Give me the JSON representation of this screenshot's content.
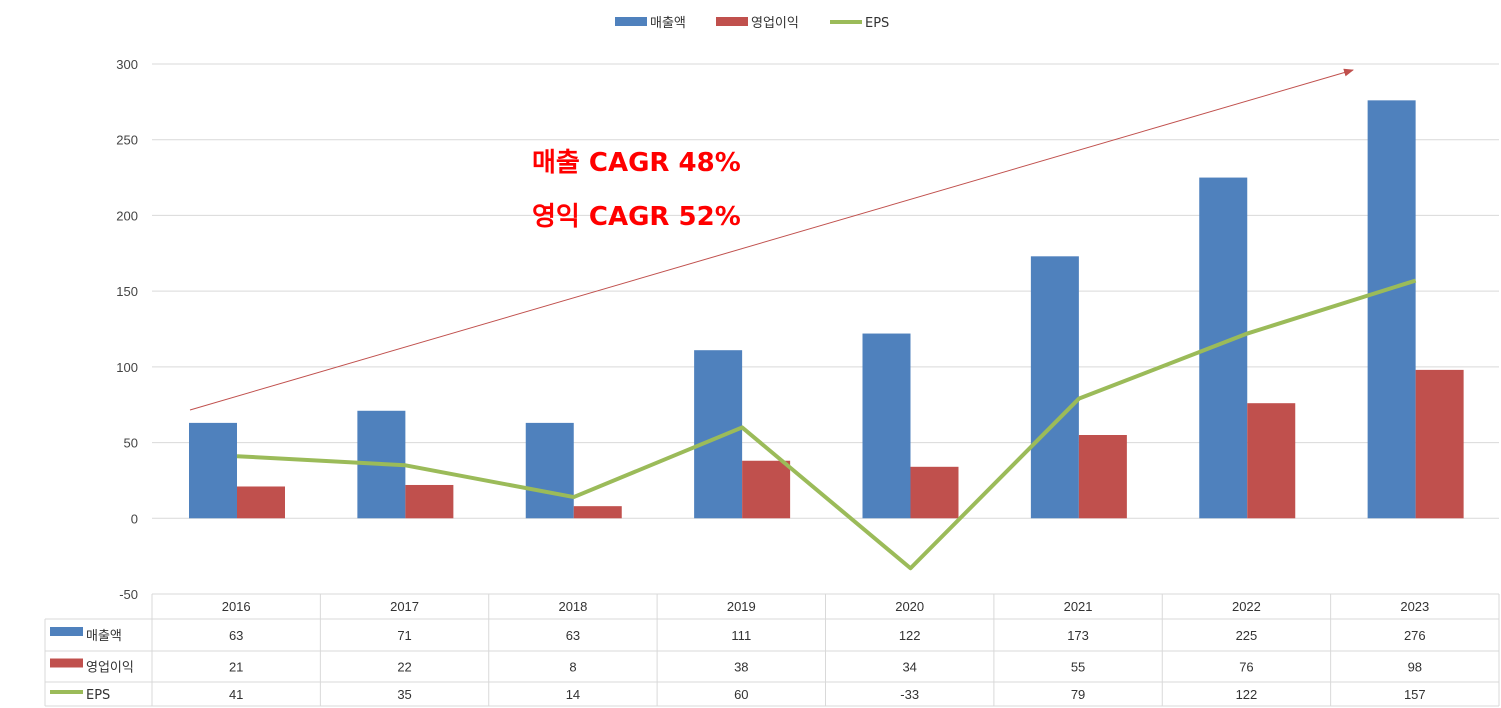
{
  "chart_data": {
    "type": "bar",
    "categories": [
      "2016",
      "2017",
      "2018",
      "2019",
      "2020",
      "2021",
      "2022",
      "2023"
    ],
    "series": [
      {
        "name": "매출액",
        "type": "bar",
        "color": "#4f81bd",
        "values": [
          63,
          71,
          63,
          111,
          122,
          173,
          225,
          276
        ]
      },
      {
        "name": "영업이익",
        "type": "bar",
        "color": "#c0504d",
        "values": [
          21,
          22,
          8,
          38,
          34,
          55,
          76,
          98
        ]
      },
      {
        "name": "EPS",
        "type": "line",
        "color": "#9bbb59",
        "values": [
          41,
          35,
          14,
          60,
          -33,
          79,
          122,
          157
        ]
      }
    ],
    "yticks": [
      300,
      250,
      200,
      150,
      100,
      50,
      0,
      -50
    ],
    "ylim": [
      -50,
      300
    ],
    "grid": true,
    "legend_position": "top-center",
    "data_table": true,
    "annotations": {
      "sales_cagr": "매출 CAGR 48%",
      "op_cagr": "영익 CAGR 52%",
      "trend_arrow_color": "#c0504d"
    }
  }
}
